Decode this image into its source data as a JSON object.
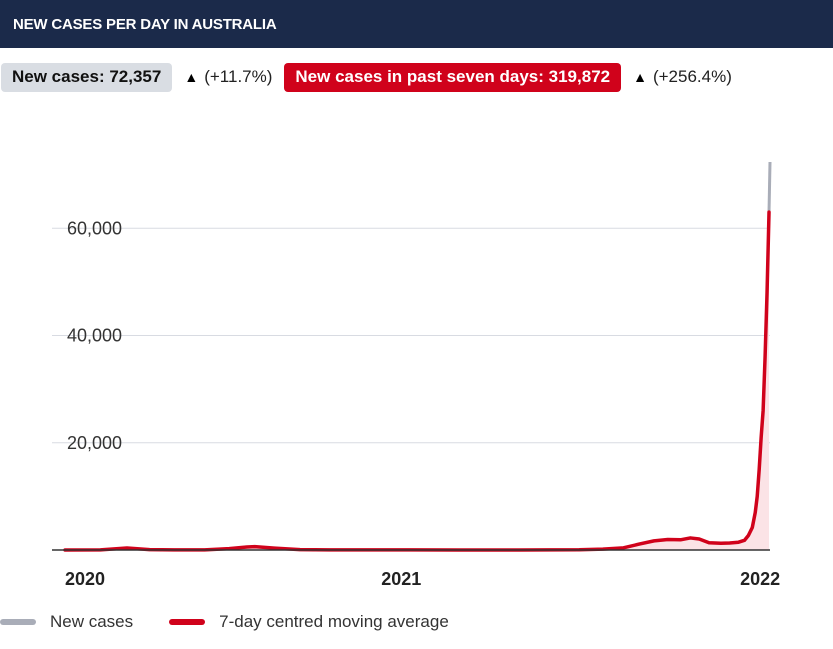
{
  "header": {
    "title": "NEW CASES PER DAY IN AUSTRALIA"
  },
  "stats": {
    "new_cases_label": "New cases: 72,357",
    "new_cases_change": "(+11.7%)",
    "seven_day_label": "New cases in past seven days: 319,872",
    "seven_day_change": "(+256.4%)",
    "arrow_icon": "arrow-up-icon"
  },
  "colors": {
    "header_bg": "#1b2a4a",
    "accent_red": "#d0021b",
    "new_cases_grey": "#a9adb8",
    "area_fill": "#fbe3e6"
  },
  "legend": {
    "new_cases": "New cases",
    "moving_average": "7-day centred moving average"
  },
  "chart_data": {
    "type": "area",
    "title": "NEW CASES PER DAY IN AUSTRALIA",
    "xlabel": "",
    "ylabel": "",
    "x_tick_labels": [
      "2020",
      "2021",
      "2022"
    ],
    "x_ticks": [
      "2020-01-01",
      "2021-01-01",
      "2022-01-01"
    ],
    "y_ticks": [
      20000,
      40000,
      60000
    ],
    "y_tick_labels": [
      "20,000",
      "40,000",
      "60,000"
    ],
    "xlim": [
      "2020-01-25",
      "2022-01-11"
    ],
    "ylim": [
      0,
      72357
    ],
    "grid": true,
    "legend_position": "bottom-left",
    "series": [
      {
        "name": "New cases",
        "color": "#a9adb8",
        "points": [
          [
            "2022-01-10",
            63000
          ],
          [
            "2022-01-11",
            72357
          ]
        ]
      },
      {
        "name": "7-day centred moving average",
        "color": "#d0021b",
        "points": [
          [
            "2020-01-25",
            0
          ],
          [
            "2020-03-01",
            20
          ],
          [
            "2020-03-28",
            380
          ],
          [
            "2020-04-20",
            60
          ],
          [
            "2020-05-15",
            15
          ],
          [
            "2020-06-15",
            15
          ],
          [
            "2020-07-10",
            250
          ],
          [
            "2020-07-28",
            560
          ],
          [
            "2020-08-05",
            620
          ],
          [
            "2020-08-25",
            350
          ],
          [
            "2020-09-20",
            60
          ],
          [
            "2020-10-20",
            15
          ],
          [
            "2020-12-15",
            15
          ],
          [
            "2020-12-28",
            30
          ],
          [
            "2021-01-10",
            20
          ],
          [
            "2021-03-01",
            10
          ],
          [
            "2021-05-01",
            10
          ],
          [
            "2021-07-01",
            50
          ],
          [
            "2021-07-25",
            170
          ],
          [
            "2021-08-15",
            400
          ],
          [
            "2021-08-31",
            1100
          ],
          [
            "2021-09-15",
            1700
          ],
          [
            "2021-09-29",
            1950
          ],
          [
            "2021-10-12",
            1900
          ],
          [
            "2021-10-22",
            2250
          ],
          [
            "2021-10-31",
            2050
          ],
          [
            "2021-11-10",
            1350
          ],
          [
            "2021-11-22",
            1250
          ],
          [
            "2021-12-01",
            1300
          ],
          [
            "2021-12-10",
            1450
          ],
          [
            "2021-12-16",
            1800
          ],
          [
            "2021-12-20",
            2700
          ],
          [
            "2021-12-24",
            4200
          ],
          [
            "2021-12-27",
            7000
          ],
          [
            "2021-12-29",
            10000
          ],
          [
            "2021-12-31",
            15000
          ],
          [
            "2022-01-02",
            21000
          ],
          [
            "2022-01-04",
            26000
          ],
          [
            "2022-01-06",
            36000
          ],
          [
            "2022-01-08",
            48000
          ],
          [
            "2022-01-10",
            63000
          ]
        ]
      }
    ]
  }
}
